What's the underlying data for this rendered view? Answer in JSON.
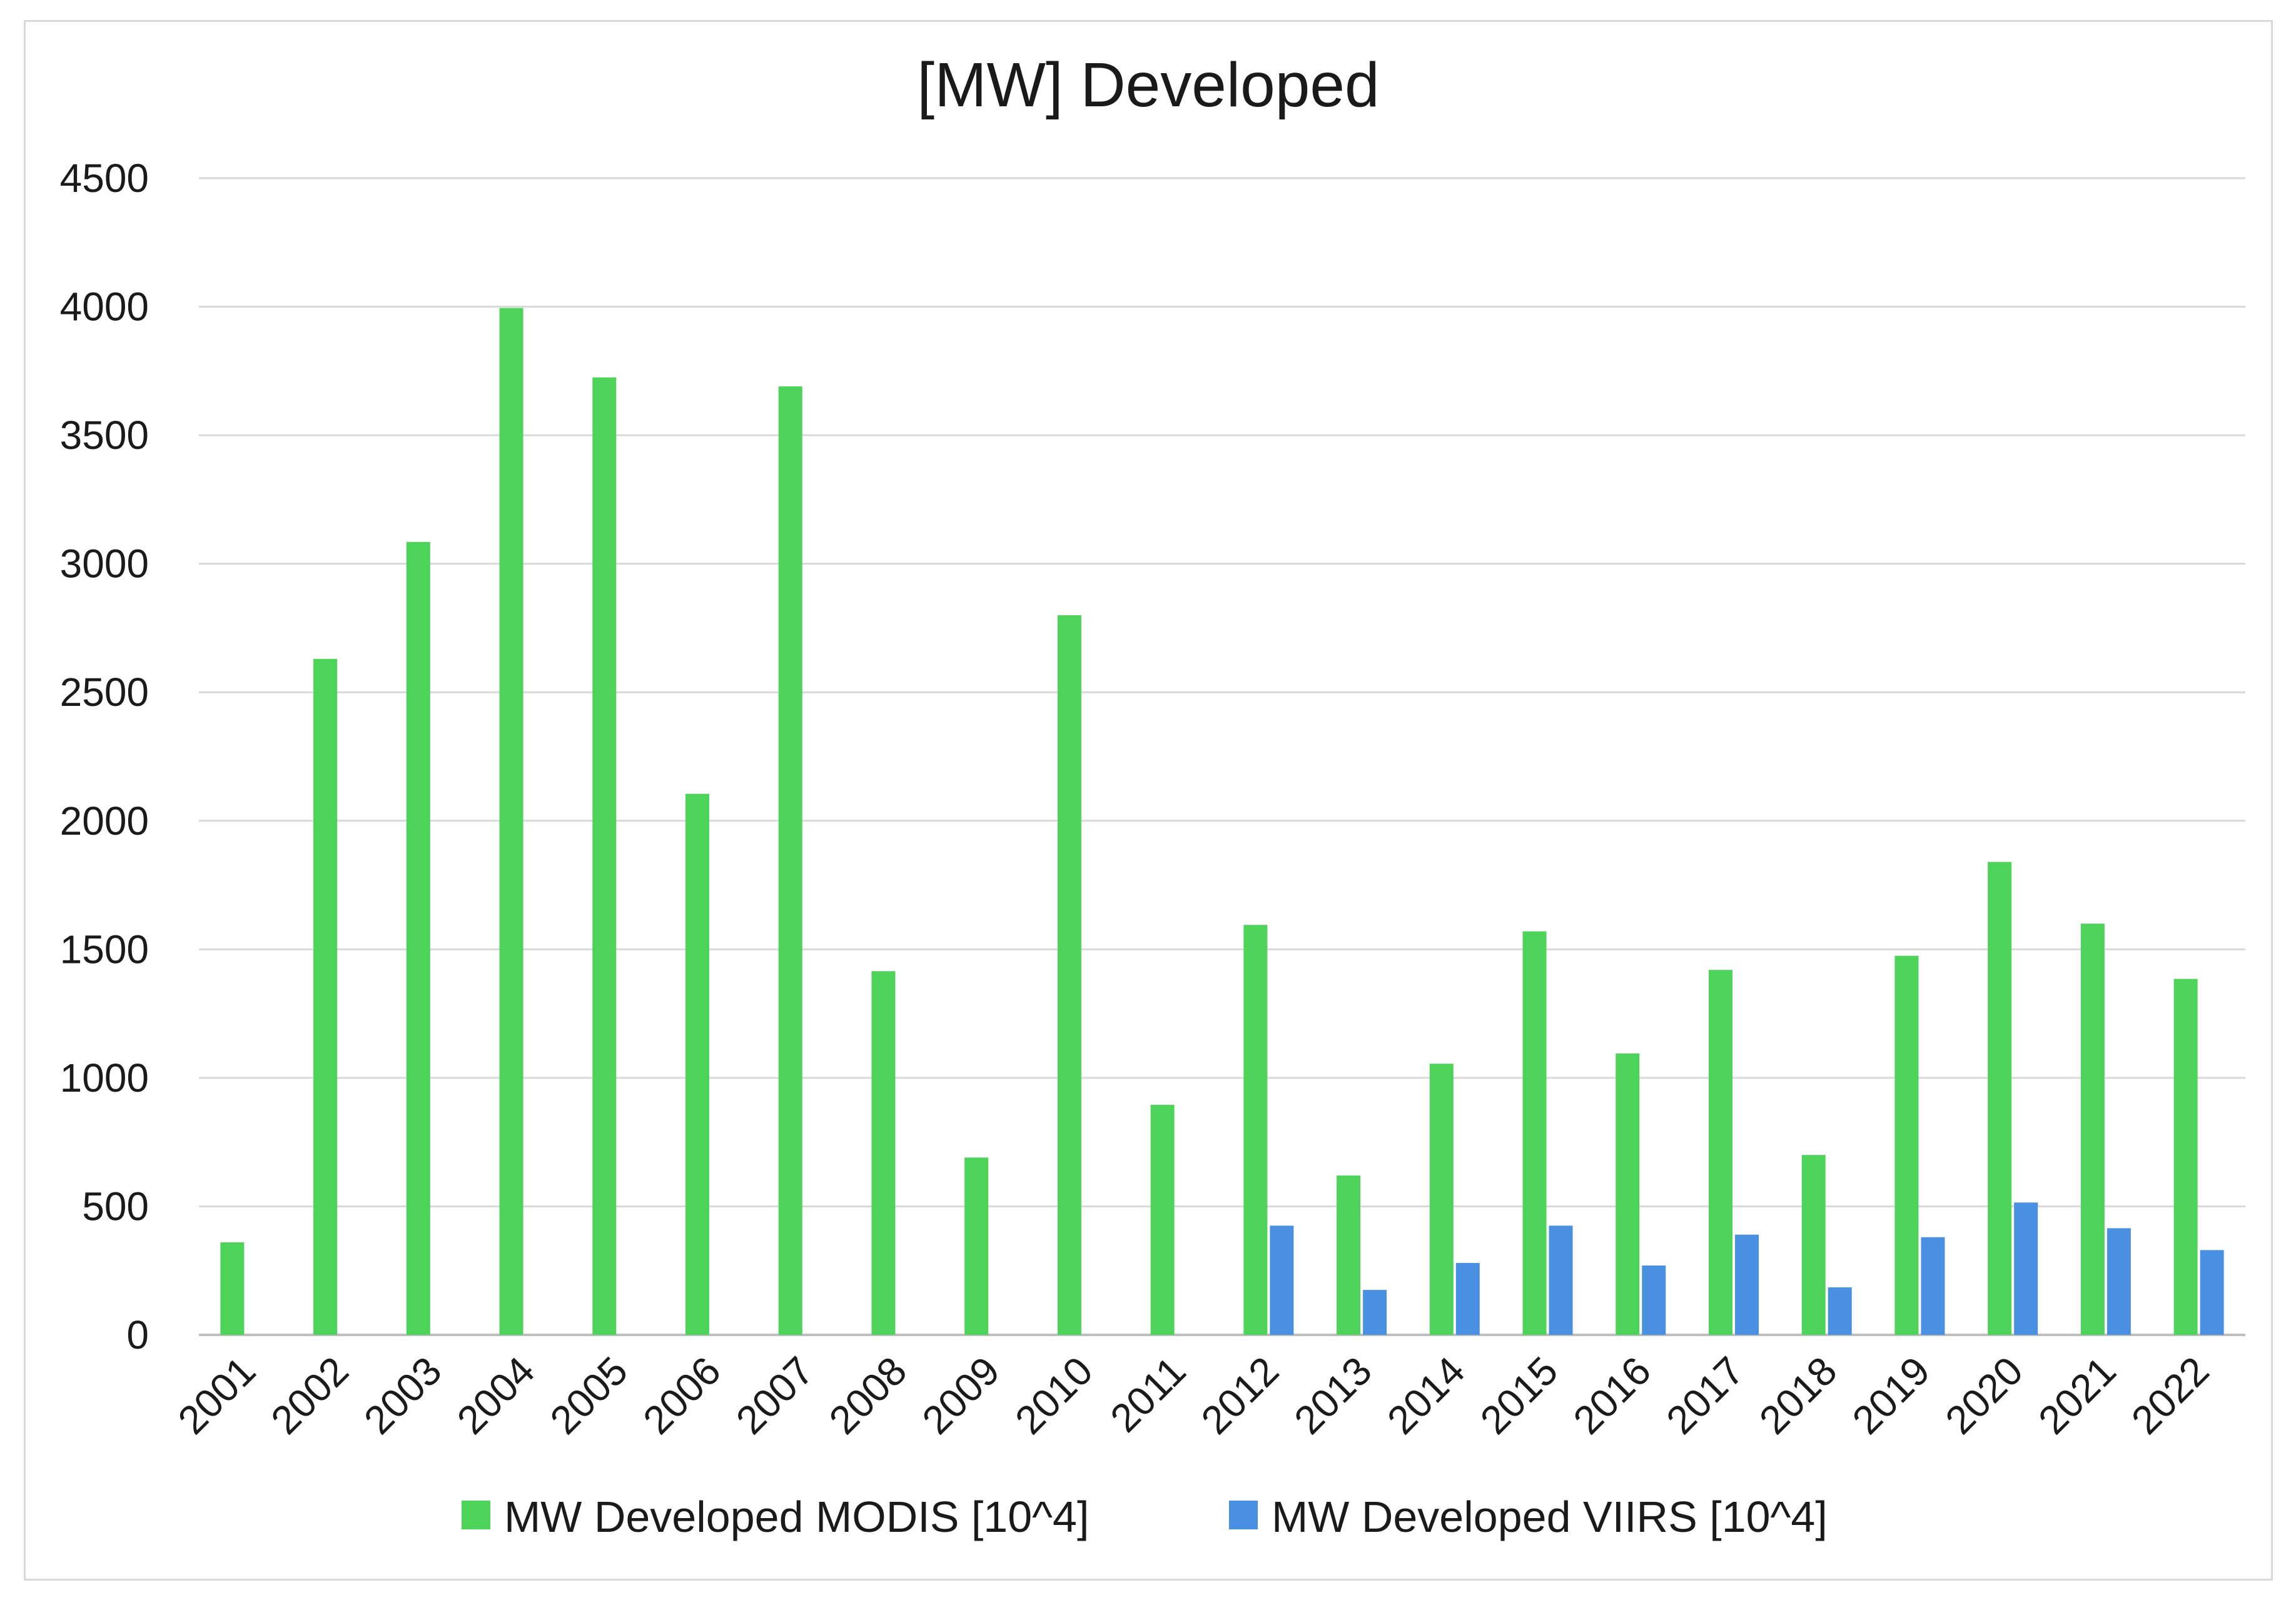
{
  "chart_data": {
    "type": "bar",
    "title": "[MW] Developed",
    "xlabel": "",
    "ylabel": "",
    "ylim": [
      0,
      4500
    ],
    "yticks": [
      0,
      500,
      1000,
      1500,
      2000,
      2500,
      3000,
      3500,
      4000,
      4500
    ],
    "grid": true,
    "legend": "bottom",
    "categories": [
      "2001",
      "2002",
      "2003",
      "2004",
      "2005",
      "2006",
      "2007",
      "2008",
      "2009",
      "2010",
      "2011",
      "2012",
      "2013",
      "2014",
      "2015",
      "2016",
      "2017",
      "2018",
      "2019",
      "2020",
      "2021",
      "2022"
    ],
    "series": [
      {
        "name": "MW Developed MODIS [10^4]",
        "color": "#4dd35a",
        "values": [
          360,
          2630,
          3085,
          3995,
          3725,
          2105,
          3690,
          1415,
          690,
          2800,
          895,
          1595,
          620,
          1055,
          1570,
          1095,
          1420,
          700,
          1475,
          1840,
          1600,
          1385
        ]
      },
      {
        "name": "MW Developed VIIRS [10^4]",
        "color": "#4a90e2",
        "values": [
          null,
          null,
          null,
          null,
          null,
          null,
          null,
          null,
          null,
          null,
          null,
          425,
          175,
          280,
          425,
          270,
          390,
          185,
          380,
          515,
          415,
          330
        ]
      }
    ]
  }
}
